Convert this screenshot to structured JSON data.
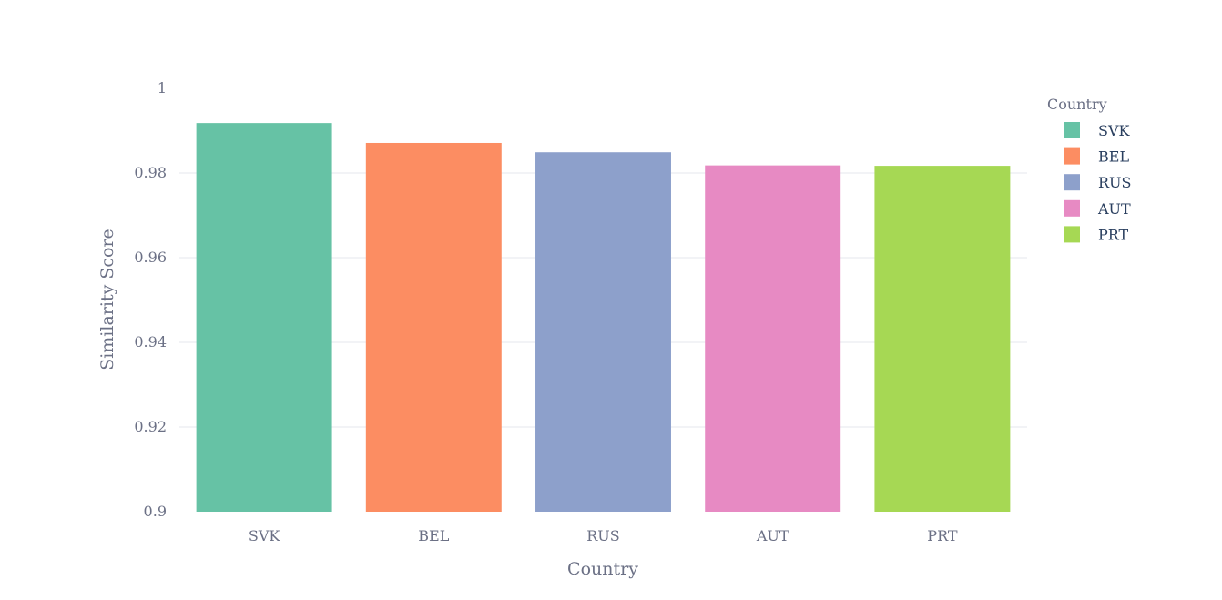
{
  "chart_data": {
    "type": "bar",
    "categories": [
      "SVK",
      "BEL",
      "RUS",
      "AUT",
      "PRT"
    ],
    "values": [
      0.9918,
      0.9871,
      0.9849,
      0.9818,
      0.9817
    ],
    "colors": [
      "#66c2a5",
      "#fc8d62",
      "#8da0cb",
      "#e78ac3",
      "#a6d854"
    ],
    "title": "",
    "xlabel": "Country",
    "ylabel": "Similarity Score",
    "ylim": [
      0.9,
      1.0
    ],
    "yticks": [
      0.9,
      0.92,
      0.94,
      0.96,
      0.98,
      1.0
    ],
    "ytick_labels": [
      "0.9",
      "0.92",
      "0.94",
      "0.96",
      "0.98",
      "1"
    ],
    "grid": true,
    "grid_color": "#e5e7ed",
    "tick_color": "#6b7085",
    "legend": {
      "title": "Country",
      "placement": "top-right",
      "entries": [
        "SVK",
        "BEL",
        "RUS",
        "AUT",
        "PRT"
      ]
    }
  }
}
